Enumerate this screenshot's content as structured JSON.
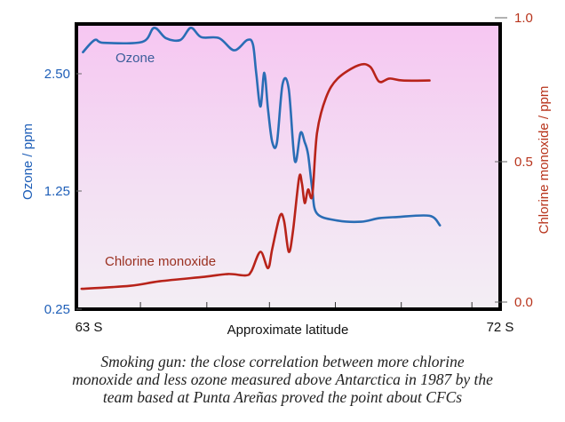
{
  "chart_data": {
    "type": "line",
    "xlabel": "Approximate latitude",
    "x_tick_labels": [
      "63 S",
      "72 S"
    ],
    "xlim": [
      63,
      72
    ],
    "y_left": {
      "label": "Ozone / ppm",
      "ticks": [
        0.25,
        1.25,
        2.5
      ],
      "tick_labels": [
        "0.25",
        "1.25",
        "2.50"
      ],
      "color": "#1f5fb8"
    },
    "y_right": {
      "label": "Chlorine monoxide / ppm",
      "ticks": [
        0.0,
        0.5,
        1.0
      ],
      "tick_labels": [
        "0.0",
        "0.5",
        "1.0"
      ],
      "color": "#b8341c"
    },
    "grid": false,
    "background": {
      "top": "#f6c6f2",
      "bottom": "#f3eef4"
    },
    "series": [
      {
        "name": "Ozone",
        "axis": "left",
        "color": "#2a6db5",
        "x": [
          63.14,
          63.39,
          63.58,
          64.4,
          64.65,
          64.9,
          65.21,
          65.43,
          65.65,
          66.03,
          66.35,
          66.63,
          66.75,
          66.82,
          66.91,
          66.99,
          67.07,
          67.16,
          67.26,
          67.38,
          67.51,
          67.64,
          67.76,
          67.85,
          67.92,
          68.01,
          68.11,
          68.55,
          69.05,
          69.43,
          69.81,
          70.5,
          70.72
        ],
        "y": [
          2.73,
          2.86,
          2.83,
          2.84,
          2.99,
          2.88,
          2.86,
          2.99,
          2.89,
          2.88,
          2.75,
          2.86,
          2.81,
          2.5,
          2.15,
          2.51,
          2.12,
          1.77,
          1.77,
          2.39,
          2.34,
          1.57,
          1.87,
          1.77,
          1.64,
          1.27,
          1.06,
          1.0,
          0.99,
          1.02,
          1.03,
          1.04,
          0.96
        ]
      },
      {
        "name": "Chlorine monoxide",
        "axis": "right",
        "color": "#b8231a",
        "x": [
          63.11,
          64.14,
          64.77,
          65.72,
          66.22,
          66.6,
          66.72,
          66.91,
          67.07,
          67.16,
          67.32,
          67.41,
          67.51,
          67.6,
          67.73,
          67.79,
          67.85,
          67.92,
          68.01,
          68.11,
          68.3,
          68.55,
          68.99,
          69.24,
          69.43,
          69.65,
          69.93,
          70.5
        ],
        "y": [
          0.047,
          0.058,
          0.074,
          0.09,
          0.1,
          0.095,
          0.111,
          0.179,
          0.121,
          0.19,
          0.306,
          0.29,
          0.179,
          0.253,
          0.443,
          0.422,
          0.353,
          0.401,
          0.38,
          0.599,
          0.722,
          0.789,
          0.835,
          0.83,
          0.778,
          0.789,
          0.782,
          0.782
        ]
      }
    ]
  },
  "caption": {
    "lines": [
      "Smoking gun: the close correlation between more chlorine",
      "monoxide and less ozone measured above Antarctica in 1987 by the",
      "team based at Punta Areñas proved the point about CFCs"
    ]
  }
}
